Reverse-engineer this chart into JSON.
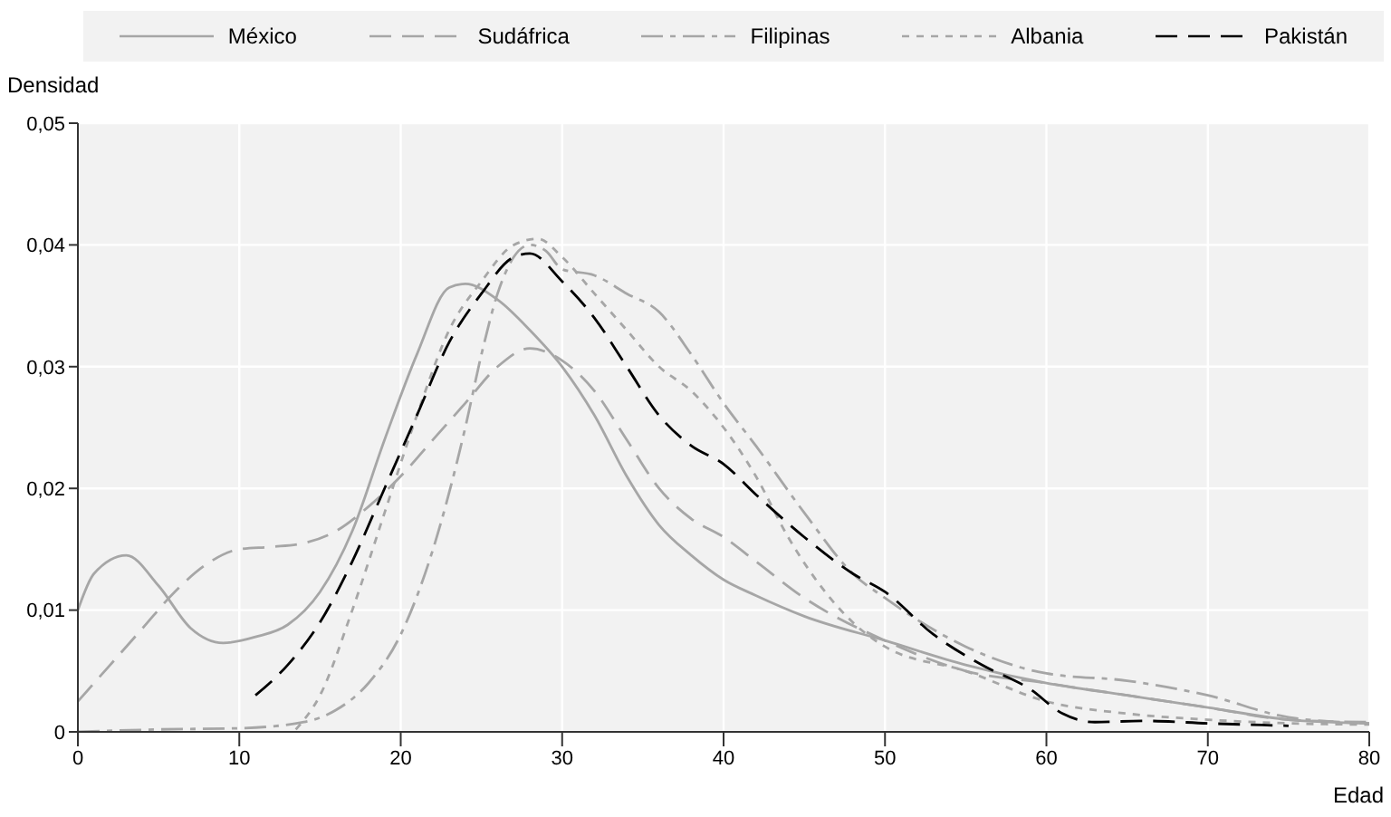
{
  "chart_data": {
    "type": "line",
    "xlabel": "Edad",
    "ylabel": "Densidad",
    "legend": "top",
    "grid": true,
    "marker": "none",
    "xlim": [
      0,
      80
    ],
    "xticks": [
      0,
      10,
      20,
      30,
      40,
      50,
      60,
      70,
      80
    ],
    "ylim": [
      0,
      0.05
    ],
    "yticks": [
      0,
      {
        "value": 0.01,
        "label": "0,01"
      },
      {
        "value": 0.02,
        "label": "0,02"
      },
      {
        "value": 0.03,
        "label": "0,03"
      },
      {
        "value": 0.04,
        "label": "0,04"
      },
      {
        "value": 0.05,
        "label": "0,05"
      }
    ],
    "series": [
      {
        "name": "México",
        "color": "#a6a6a6",
        "line_style": "solid",
        "x": [
          0,
          1,
          3,
          5,
          7,
          9,
          11,
          13,
          15,
          17,
          19,
          21,
          23,
          24,
          26,
          28,
          30,
          32,
          34,
          36,
          38,
          40,
          42,
          45,
          50,
          55,
          60,
          65,
          70,
          75,
          80
        ],
        "values": [
          0.01,
          0.013,
          0.0145,
          0.012,
          0.0085,
          0.0073,
          0.0078,
          0.0088,
          0.0115,
          0.0165,
          0.024,
          0.031,
          0.0365,
          0.0368,
          0.0355,
          0.033,
          0.03,
          0.026,
          0.021,
          0.017,
          0.0145,
          0.0125,
          0.0112,
          0.0095,
          0.0075,
          0.0055,
          0.004,
          0.003,
          0.002,
          0.001,
          0.0007
        ]
      },
      {
        "name": "Sudáfrica",
        "color": "#a6a6a6",
        "line_style": "dashed",
        "x": [
          0,
          2,
          4,
          6,
          8,
          10,
          12,
          14,
          16,
          18,
          20,
          22,
          24,
          26,
          28,
          30,
          32,
          34,
          36,
          38,
          40,
          42,
          45,
          50,
          55,
          60,
          65,
          70,
          75,
          80
        ],
        "values": [
          0.0025,
          0.0055,
          0.0085,
          0.0115,
          0.0138,
          0.015,
          0.0152,
          0.0155,
          0.0165,
          0.0185,
          0.021,
          0.024,
          0.027,
          0.03,
          0.0315,
          0.0305,
          0.028,
          0.024,
          0.02,
          0.0175,
          0.016,
          0.014,
          0.011,
          0.0075,
          0.005,
          0.004,
          0.003,
          0.002,
          0.001,
          0.0008
        ]
      },
      {
        "name": "Filipinas",
        "color": "#a6a6a6",
        "line_style": "dashdot",
        "x": [
          0,
          5,
          10,
          14,
          16,
          18,
          20,
          22,
          24,
          25,
          26,
          27,
          28,
          29,
          30,
          32,
          34,
          36,
          38,
          40,
          42,
          45,
          48,
          50,
          55,
          60,
          65,
          70,
          75,
          80
        ],
        "values": [
          0,
          0.0002,
          0.0003,
          0.0008,
          0.0018,
          0.004,
          0.008,
          0.015,
          0.025,
          0.031,
          0.036,
          0.039,
          0.04,
          0.0395,
          0.038,
          0.0375,
          0.036,
          0.0345,
          0.031,
          0.027,
          0.0235,
          0.018,
          0.013,
          0.011,
          0.007,
          0.0048,
          0.0042,
          0.003,
          0.0012,
          0.0007
        ]
      },
      {
        "name": "Albania",
        "color": "#a6a6a6",
        "line_style": "dotted",
        "x": [
          13.5,
          15,
          17,
          19,
          21,
          23,
          25,
          27,
          28.5,
          30,
          32,
          34,
          36,
          38,
          40,
          42,
          44,
          46,
          48,
          50,
          55,
          60,
          65,
          70,
          75,
          80
        ],
        "values": [
          0.0002,
          0.003,
          0.01,
          0.018,
          0.026,
          0.033,
          0.037,
          0.04,
          0.0405,
          0.039,
          0.036,
          0.033,
          0.03,
          0.028,
          0.025,
          0.021,
          0.016,
          0.012,
          0.009,
          0.007,
          0.005,
          0.0025,
          0.0015,
          0.001,
          0.0007,
          0.0006
        ]
      },
      {
        "name": "Pakistán",
        "color": "#000000",
        "line_style": "dashed",
        "x": [
          11,
          13,
          15,
          17,
          19,
          21,
          23,
          25,
          27,
          28,
          30,
          32,
          34,
          36,
          38,
          40,
          42,
          45,
          48,
          50,
          53,
          56,
          59,
          61,
          63,
          66,
          70,
          75
        ],
        "values": [
          0.003,
          0.0055,
          0.009,
          0.014,
          0.02,
          0.026,
          0.032,
          0.036,
          0.039,
          0.0393,
          0.037,
          0.034,
          0.03,
          0.026,
          0.0235,
          0.022,
          0.0195,
          0.016,
          0.013,
          0.0115,
          0.008,
          0.0055,
          0.0035,
          0.0015,
          0.0008,
          0.0009,
          0.0007,
          0.0005
        ]
      }
    ]
  }
}
